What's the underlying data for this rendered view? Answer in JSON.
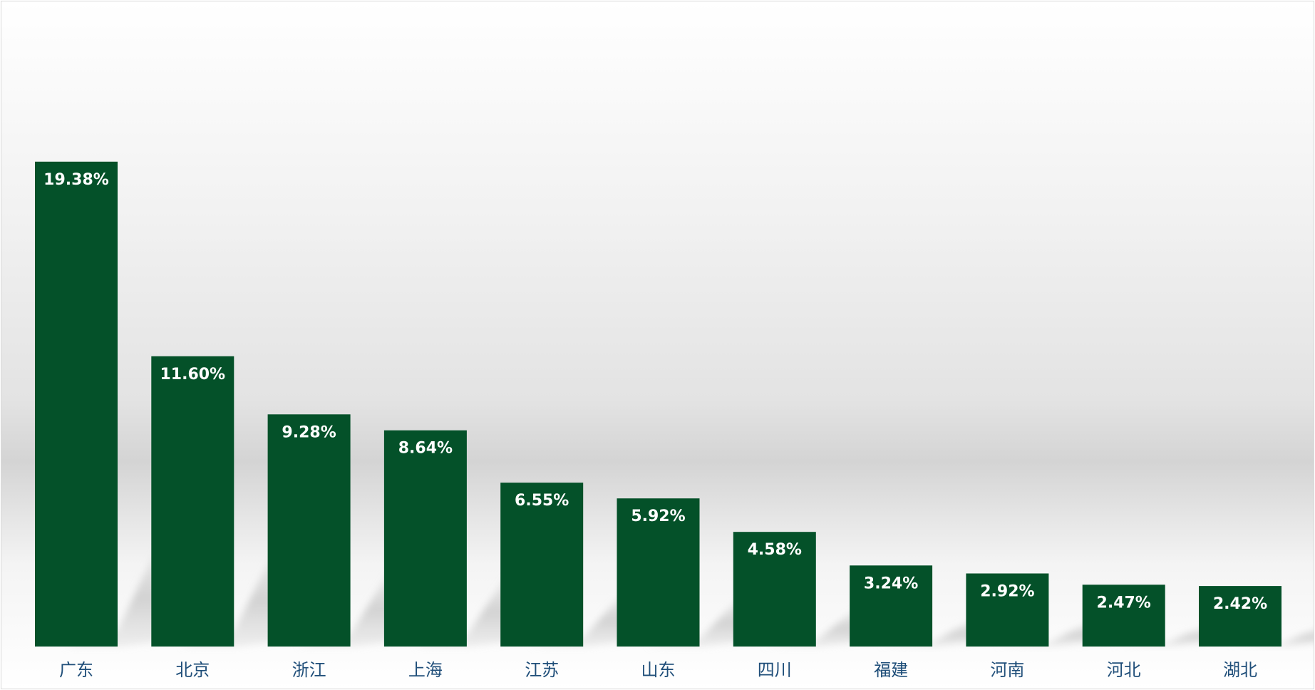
{
  "chart_data": {
    "type": "bar",
    "categories": [
      "广东",
      "北京",
      "浙江",
      "上海",
      "江苏",
      "山东",
      "四川",
      "福建",
      "河南",
      "河北",
      "湖北"
    ],
    "values": [
      19.38,
      11.6,
      9.28,
      8.64,
      6.55,
      5.92,
      4.58,
      3.24,
      2.92,
      2.47,
      2.42
    ],
    "data_labels": [
      "19.38%",
      "11.60%",
      "9.28%",
      "8.64%",
      "6.55%",
      "5.92%",
      "4.58%",
      "3.24%",
      "2.92%",
      "2.47%",
      "2.42%"
    ],
    "title": "",
    "xlabel": "",
    "ylabel": "",
    "ylim": [
      0,
      25
    ],
    "grid": false,
    "legend": "none",
    "bar_color": "#045129",
    "label_color": "#ffffff",
    "category_color": "#1f4e79"
  }
}
